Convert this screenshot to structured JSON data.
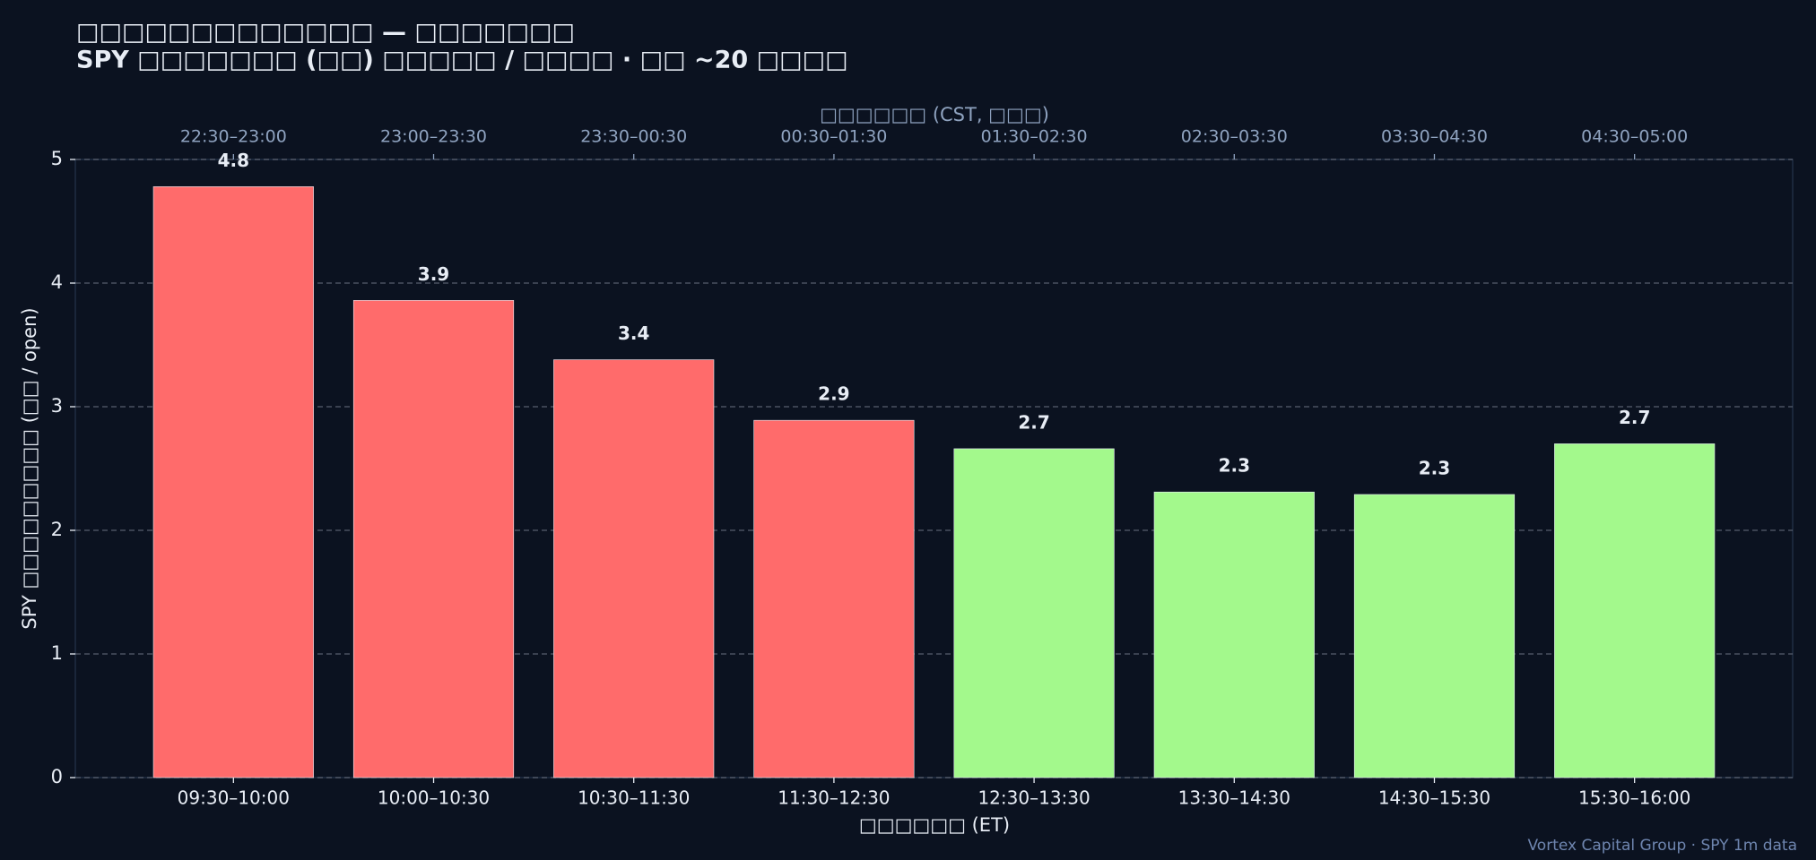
{
  "chart_data": {
    "type": "bar",
    "title": "□□□□□□□□□□□□□ — □□□□□□□",
    "subtitle": "SPY □□□□□□□ (□□) □□□□□ / □□□□ · □□ ~20 □□□□",
    "x_label": "□□□□□□ (ET)",
    "y_label": "SPY □□□□□□□□□ (□□ / open)",
    "top_x_label": "□□□□□□ (CST, □□□)",
    "categories": [
      "09:30–10:00",
      "10:00–10:30",
      "10:30–11:30",
      "11:30–12:30",
      "12:30–13:30",
      "13:30–14:30",
      "14:30–15:30",
      "15:30–16:00"
    ],
    "top_categories": [
      "22:30–23:00",
      "23:00–23:30",
      "23:30–00:30",
      "00:30–01:30",
      "01:30–02:30",
      "02:30–03:30",
      "03:30–04:30",
      "04:30–05:00"
    ],
    "values": [
      4.78,
      3.86,
      3.38,
      2.89,
      2.66,
      2.31,
      2.29,
      2.7
    ],
    "value_labels": [
      "4.8",
      "3.9",
      "3.4",
      "2.9",
      "2.7",
      "2.3",
      "2.3",
      "2.7"
    ],
    "colors": [
      "#ff6b6b",
      "#ff6b6b",
      "#ff6b6b",
      "#ff6b6b",
      "#a3f98c",
      "#a3f98c",
      "#a3f98c",
      "#a3f98c"
    ],
    "ylim": [
      0,
      5
    ],
    "yticks": [
      0,
      1,
      2,
      3,
      4,
      5
    ],
    "grid": true,
    "footnote": "Vortex Capital Group  ·  SPY 1m data"
  }
}
